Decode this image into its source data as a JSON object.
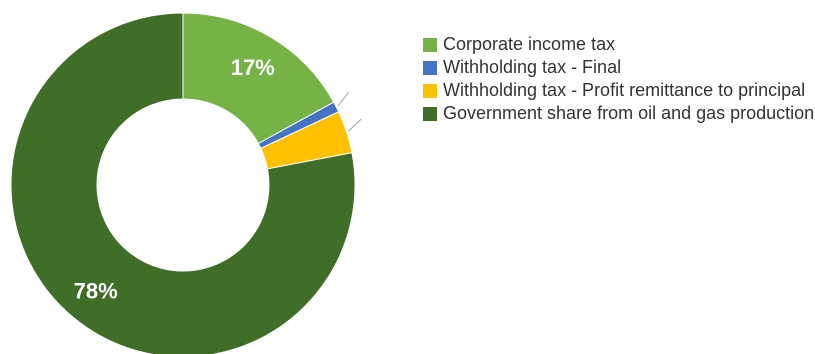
{
  "chart_data": {
    "type": "pie",
    "donut": true,
    "title": "",
    "slices": [
      {
        "name": "Corporate income tax",
        "value": 17,
        "color": "#76b347",
        "label": "17%"
      },
      {
        "name": "Withholding tax - Final",
        "value": 1,
        "color": "#4472c4",
        "label": ""
      },
      {
        "name": "Withholding tax - Profit remittance to principal",
        "value": 4,
        "color": "#ffc000",
        "label": ""
      },
      {
        "name": "Government share from oil and gas production",
        "value": 78,
        "color": "#3f6e28",
        "label": "78%"
      }
    ],
    "legend_position": "right"
  }
}
